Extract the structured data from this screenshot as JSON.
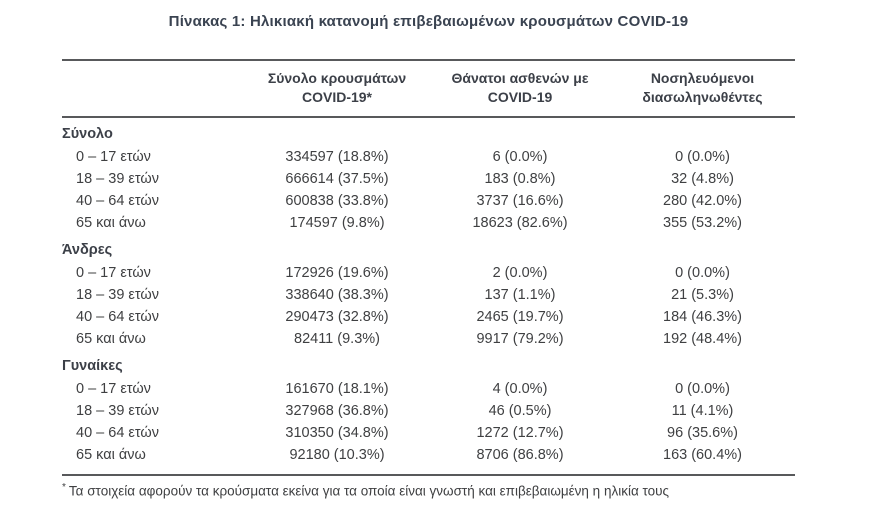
{
  "title": "Πίνακας 1: Ηλικιακή κατανομή επιβεβαιωμένων κρουσμάτων COVID-19",
  "colors": {
    "title_text": "#3a4351",
    "body_text": "#3f4042",
    "rule": "#58595b",
    "background": "#ffffff"
  },
  "table": {
    "columns": [
      {
        "line1": "Σύνολο κρουσμάτων",
        "line2": "COVID-19*"
      },
      {
        "line1": "Θάνατοι ασθενών με",
        "line2": "COVID-19"
      },
      {
        "line1": "Νοσηλευόμενοι",
        "line2": "διασωληνωθέντες"
      }
    ],
    "sections": [
      {
        "name": "Σύνολο",
        "rows": [
          {
            "label": "0 – 17 ετών",
            "cases": "334597 (18.8%)",
            "deaths": "6 (0.0%)",
            "intubated": "0 (0.0%)"
          },
          {
            "label": "18 – 39 ετών",
            "cases": "666614 (37.5%)",
            "deaths": "183 (0.8%)",
            "intubated": "32 (4.8%)"
          },
          {
            "label": "40 – 64 ετών",
            "cases": "600838 (33.8%)",
            "deaths": "3737 (16.6%)",
            "intubated": "280 (42.0%)"
          },
          {
            "label": "65 και άνω",
            "cases": "174597 (9.8%)",
            "deaths": "18623 (82.6%)",
            "intubated": "355 (53.2%)"
          }
        ]
      },
      {
        "name": "Άνδρες",
        "rows": [
          {
            "label": "0 – 17 ετών",
            "cases": "172926 (19.6%)",
            "deaths": "2 (0.0%)",
            "intubated": "0 (0.0%)"
          },
          {
            "label": "18 – 39 ετών",
            "cases": "338640 (38.3%)",
            "deaths": "137 (1.1%)",
            "intubated": "21 (5.3%)"
          },
          {
            "label": "40 – 64 ετών",
            "cases": "290473 (32.8%)",
            "deaths": "2465 (19.7%)",
            "intubated": "184 (46.3%)"
          },
          {
            "label": "65 και άνω",
            "cases": "82411 (9.3%)",
            "deaths": "9917 (79.2%)",
            "intubated": "192 (48.4%)"
          }
        ]
      },
      {
        "name": "Γυναίκες",
        "rows": [
          {
            "label": "0 – 17 ετών",
            "cases": "161670 (18.1%)",
            "deaths": "4 (0.0%)",
            "intubated": "0 (0.0%)"
          },
          {
            "label": "18 – 39 ετών",
            "cases": "327968 (36.8%)",
            "deaths": "46 (0.5%)",
            "intubated": "11 (4.1%)"
          },
          {
            "label": "40 – 64 ετών",
            "cases": "310350 (34.8%)",
            "deaths": "1272 (12.7%)",
            "intubated": "96 (35.6%)"
          },
          {
            "label": "65 και άνω",
            "cases": "92180 (10.3%)",
            "deaths": "8706 (86.8%)",
            "intubated": "163 (60.4%)"
          }
        ]
      }
    ]
  },
  "footnote": {
    "marker": "*",
    "text": "Τα στοιχεία αφορούν τα κρούσματα εκείνα για τα οποία είναι γνωστή και επιβεβαιωμένη η ηλικία τους"
  }
}
